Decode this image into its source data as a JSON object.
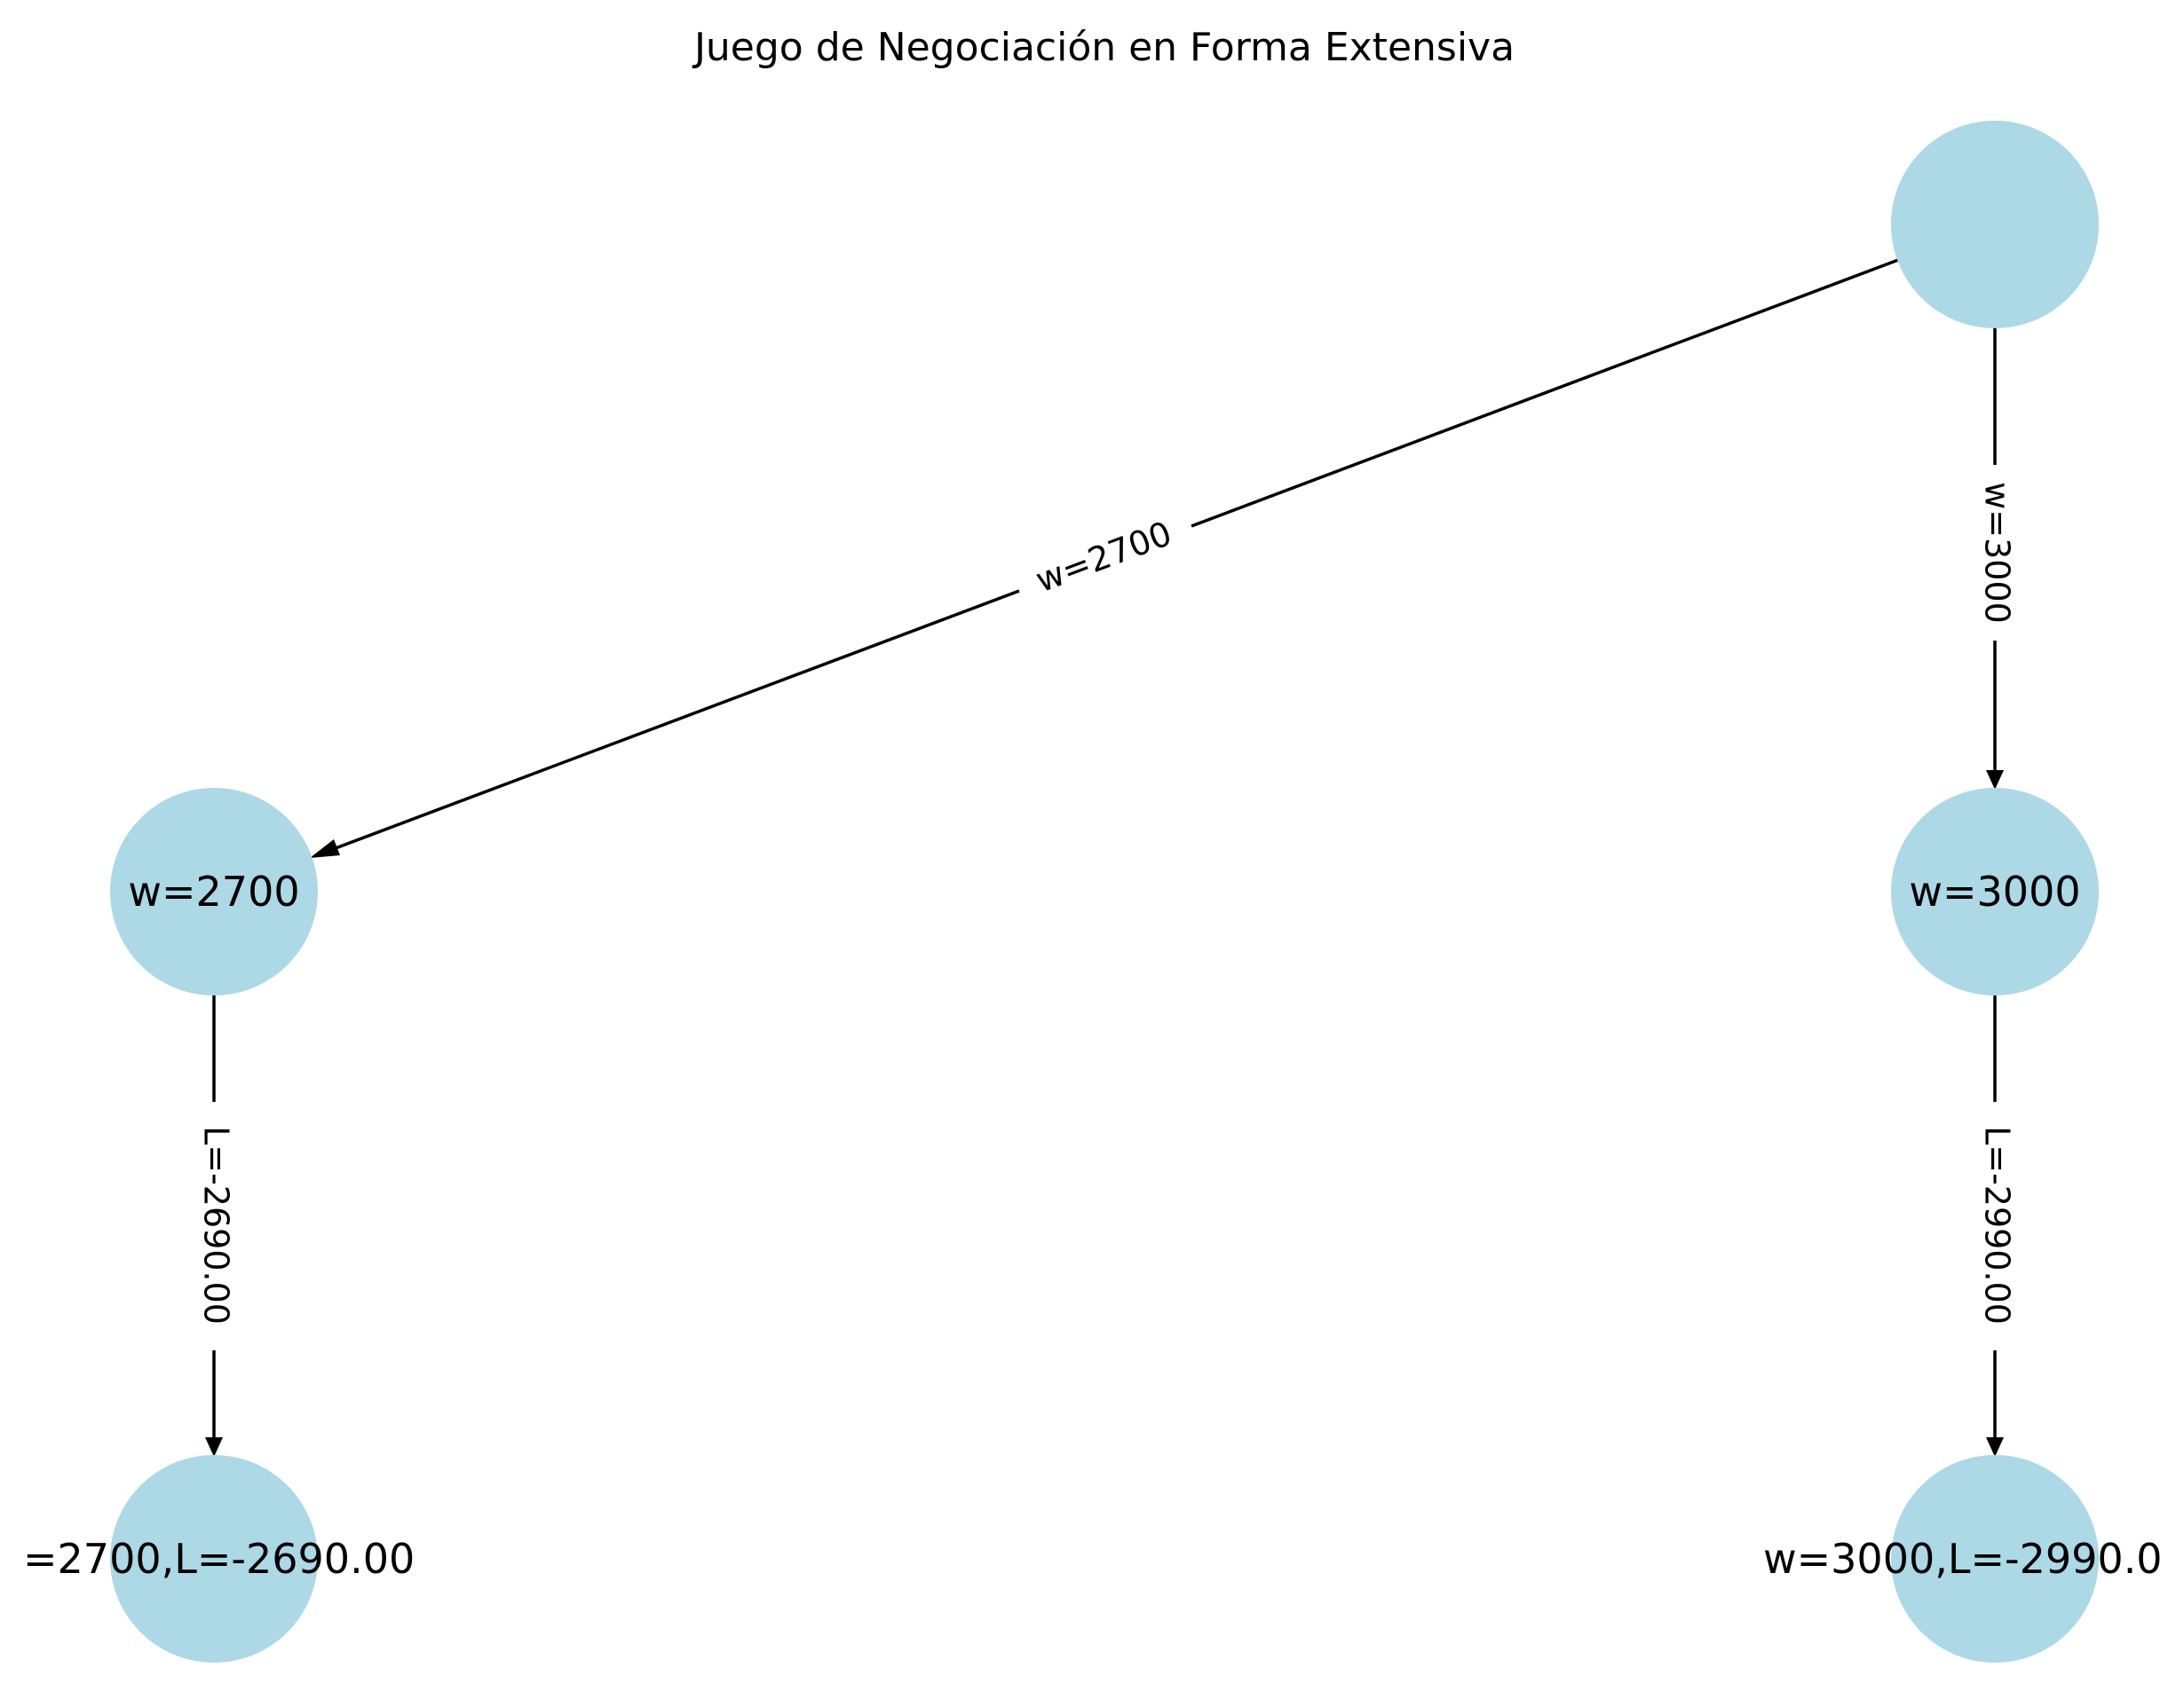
{
  "title": "Juego de Negociación en Forma Extensiva",
  "colors": {
    "node_fill": "#add8e6",
    "edge": "#000000",
    "text": "#000000",
    "background": "#ffffff"
  },
  "nodes": {
    "root": {
      "label": ""
    },
    "w2700": {
      "label": "w=2700"
    },
    "w3000": {
      "label": "w=3000"
    },
    "leaf2700": {
      "label": "=2700,L=-2690.00"
    },
    "leaf3000": {
      "label": "w=3000,L=-2990.0"
    }
  },
  "edges": {
    "root_to_w2700": {
      "label": "w=2700"
    },
    "root_to_w3000": {
      "label": "w=3000"
    },
    "w2700_to_leaf": {
      "label": "L=-2690.00"
    },
    "w3000_to_leaf": {
      "label": "L=-2990.00"
    }
  }
}
